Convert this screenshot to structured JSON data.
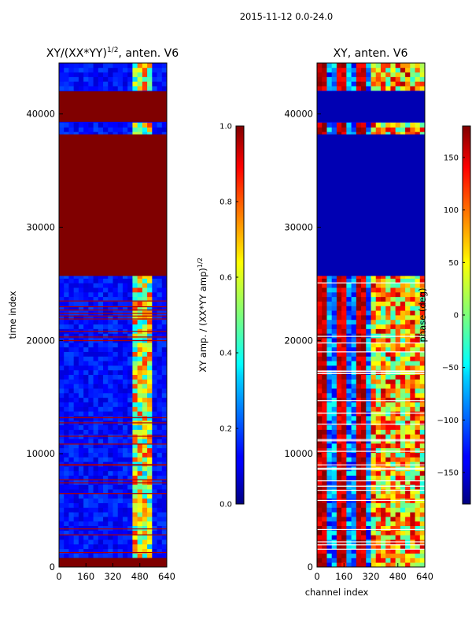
{
  "figure": {
    "suptitle": "2015-11-12 0.0-24.0"
  },
  "chart_data": [
    {
      "type": "heatmap",
      "title": "XY/(XX*YY)",
      "title_superscript": "1/2",
      "title_suffix": ", anten. V6",
      "xlabel": "",
      "ylabel": "time index",
      "xlim": [
        0,
        640
      ],
      "ylim": [
        0,
        44500
      ],
      "xticks": [
        "0",
        "160",
        "320",
        "480",
        "640"
      ],
      "yticks": [
        "0",
        "10000",
        "20000",
        "30000",
        "40000"
      ],
      "colorbar": {
        "label": "XY amp. / (XX*YY amp)",
        "label_superscript": "1/2",
        "range": [
          0,
          1
        ],
        "ticks": [
          "0.0",
          "0.2",
          "0.4",
          "0.6",
          "0.8",
          "1.0"
        ],
        "colormap": "jet"
      },
      "saturated_blocks_time": [
        [
          0,
          800
        ],
        [
          25700,
          38200
        ],
        [
          39300,
          42000
        ]
      ],
      "active_channel_range": [
        440,
        560
      ]
    },
    {
      "type": "heatmap",
      "title": "XY, anten. V6",
      "xlabel": "channel index",
      "ylabel": "",
      "xlim": [
        0,
        640
      ],
      "ylim": [
        0,
        44500
      ],
      "xticks": [
        "0",
        "160",
        "320",
        "480",
        "640"
      ],
      "yticks": [
        "0",
        "10000",
        "20000",
        "30000",
        "40000"
      ],
      "colorbar": {
        "label": "phase (deg)",
        "range": [
          -180,
          180
        ],
        "ticks": [
          "150",
          "100",
          "50",
          "0",
          "−50",
          "−100",
          "−150"
        ],
        "colormap": "jet"
      },
      "low_phase_blocks_time": [
        [
          25700,
          38200
        ],
        [
          39300,
          42000
        ]
      ]
    }
  ]
}
